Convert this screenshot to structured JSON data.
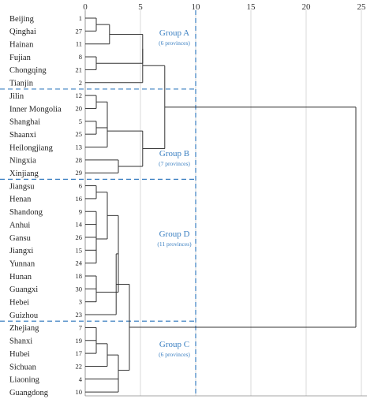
{
  "chart_data": {
    "type": "dendrogram",
    "x_ticks": [
      0,
      5,
      10,
      15,
      20,
      25
    ],
    "xlim": [
      0,
      25.5
    ],
    "grid": "vertical",
    "threshold": 10,
    "leaves": [
      {
        "label": "Beijing",
        "id": "1"
      },
      {
        "label": "Qinghai",
        "id": "27"
      },
      {
        "label": "Hainan",
        "id": "11"
      },
      {
        "label": "Fujian",
        "id": "8"
      },
      {
        "label": "Chongqing",
        "id": "21"
      },
      {
        "label": "Tianjin",
        "id": "2"
      },
      {
        "label": "Jilin",
        "id": "12"
      },
      {
        "label": "Inner Mongolia",
        "id": "20"
      },
      {
        "label": "Shanghai",
        "id": "5"
      },
      {
        "label": "Shaanxi",
        "id": "25"
      },
      {
        "label": "Heilongjiang",
        "id": "13"
      },
      {
        "label": "Ningxia",
        "id": "28"
      },
      {
        "label": "Xinjiang",
        "id": "29"
      },
      {
        "label": "Jiangsu",
        "id": "6"
      },
      {
        "label": "Henan",
        "id": "16"
      },
      {
        "label": "Shandong",
        "id": "9"
      },
      {
        "label": "Anhui",
        "id": "14"
      },
      {
        "label": "Gansu",
        "id": "26"
      },
      {
        "label": "Jiangxi",
        "id": "15"
      },
      {
        "label": "Yunnan",
        "id": "24"
      },
      {
        "label": "Hunan",
        "id": "18"
      },
      {
        "label": "Guangxi",
        "id": "30"
      },
      {
        "label": "Hebei",
        "id": "3"
      },
      {
        "label": "Guizhou",
        "id": "23"
      },
      {
        "label": "Zhejiang",
        "id": "7"
      },
      {
        "label": "Shanxi",
        "id": "19"
      },
      {
        "label": "Hubei",
        "id": "17"
      },
      {
        "label": "Sichuan",
        "id": "22"
      },
      {
        "label": "Liaoning",
        "id": "4"
      },
      {
        "label": "Guangdong",
        "id": "10"
      }
    ],
    "merges": [
      {
        "a": "Beijing",
        "b": "Qinghai",
        "h": 1.0
      },
      {
        "a": "m0",
        "b": "Hainan",
        "h": 2.2
      },
      {
        "a": "Fujian",
        "b": "Chongqing",
        "h": 1.0
      },
      {
        "a": "m1",
        "b": "m2",
        "h": 5.2
      },
      {
        "a": "m3",
        "b": "Tianjin",
        "h": 5.2
      },
      {
        "a": "Jilin",
        "b": "Inner Mongolia",
        "h": 1.0
      },
      {
        "a": "Shanghai",
        "b": "Shaanxi",
        "h": 1.0
      },
      {
        "a": "m5",
        "b": "m6",
        "h": 2.0
      },
      {
        "a": "m7",
        "b": "Heilongjiang",
        "h": 2.0
      },
      {
        "a": "Ningxia",
        "b": "Xinjiang",
        "h": 3.0
      },
      {
        "a": "m8",
        "b": "m9",
        "h": 5.2
      },
      {
        "a": "m4",
        "b": "m10",
        "h": 7.2
      },
      {
        "a": "Jiangsu",
        "b": "Henan",
        "h": 1.0
      },
      {
        "a": "Anhui",
        "b": "Gansu",
        "h": 1.0
      },
      {
        "a": "Shandong",
        "b": "m13",
        "h": 1.0
      },
      {
        "a": "Jiangxi",
        "b": "Yunnan",
        "h": 1.0
      },
      {
        "a": "m14",
        "b": "m15",
        "h": 1.0
      },
      {
        "a": "m12",
        "b": "m16",
        "h": 2.0
      },
      {
        "a": "Hunan",
        "b": "Guangxi",
        "h": 1.0
      },
      {
        "a": "m18",
        "b": "Hebei",
        "h": 1.0
      },
      {
        "a": "m17",
        "b": "m19",
        "h": 3.0
      },
      {
        "a": "m20",
        "b": "Guizhou",
        "h": 2.8
      },
      {
        "a": "Zhejiang",
        "b": "Shanxi",
        "h": 1.0
      },
      {
        "a": "m22",
        "b": "Hubei",
        "h": 1.0
      },
      {
        "a": "m23",
        "b": "Sichuan",
        "h": 2.0
      },
      {
        "a": "Liaoning",
        "b": "Guangdong",
        "h": 3.0
      },
      {
        "a": "m24",
        "b": "m25",
        "h": 3.0
      },
      {
        "a": "m21",
        "b": "m26",
        "h": 4.0
      },
      {
        "a": "m11",
        "b": "m27",
        "h": 24.5
      }
    ],
    "groups": [
      {
        "name": "Group A",
        "count": "(6 provinces)"
      },
      {
        "name": "Group B",
        "count": "(7 provinces)"
      },
      {
        "name": "Group D",
        "count": "(11 provinces)"
      },
      {
        "name": "Group C",
        "count": "(6 provinces)"
      }
    ],
    "colors": {
      "tree": "#333333",
      "grid": "#d0d0d0",
      "group": "#3a7fc1"
    }
  }
}
